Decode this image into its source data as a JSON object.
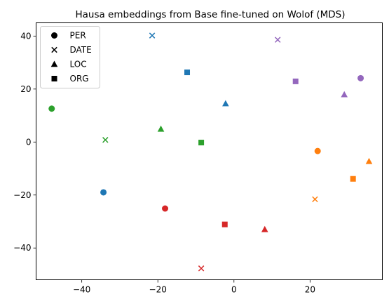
{
  "chart_data": {
    "type": "scatter",
    "title": "Hausa embeddings from Base fine-tuned on Wolof (MDS)",
    "xlabel": "",
    "ylabel": "",
    "xlim": [
      -52,
      39
    ],
    "ylim": [
      -52,
      45
    ],
    "xticks": [
      -40,
      -20,
      0,
      20
    ],
    "yticks": [
      -40,
      -20,
      0,
      20,
      40
    ],
    "grid": false,
    "legend_position": "top-left",
    "legend": [
      {
        "label": "PER",
        "marker": "circle"
      },
      {
        "label": "DATE",
        "marker": "x"
      },
      {
        "label": "LOC",
        "marker": "triangle"
      },
      {
        "label": "ORG",
        "marker": "square"
      }
    ],
    "series": [
      {
        "color": "#1f77b4",
        "points": [
          {
            "x": -34.3,
            "y": -19.0,
            "marker": "circle"
          },
          {
            "x": -21.5,
            "y": 40.2,
            "marker": "x"
          },
          {
            "x": -2.2,
            "y": 14.5,
            "marker": "triangle"
          },
          {
            "x": -12.3,
            "y": 26.3,
            "marker": "square"
          }
        ]
      },
      {
        "color": "#ff7f0e",
        "points": [
          {
            "x": 22.0,
            "y": -3.4,
            "marker": "circle"
          },
          {
            "x": 21.3,
            "y": -21.6,
            "marker": "x"
          },
          {
            "x": 35.5,
            "y": -7.3,
            "marker": "triangle"
          },
          {
            "x": 31.3,
            "y": -13.9,
            "marker": "square"
          }
        ]
      },
      {
        "color": "#2ca02c",
        "points": [
          {
            "x": -47.9,
            "y": 12.6,
            "marker": "circle"
          },
          {
            "x": -33.8,
            "y": 0.8,
            "marker": "x"
          },
          {
            "x": -19.2,
            "y": 4.9,
            "marker": "triangle"
          },
          {
            "x": -8.6,
            "y": -0.2,
            "marker": "square"
          }
        ]
      },
      {
        "color": "#d62728",
        "points": [
          {
            "x": -18.1,
            "y": -25.1,
            "marker": "circle"
          },
          {
            "x": -8.6,
            "y": -47.7,
            "marker": "x"
          },
          {
            "x": 8.1,
            "y": -33.0,
            "marker": "triangle"
          },
          {
            "x": -2.4,
            "y": -31.1,
            "marker": "square"
          }
        ]
      },
      {
        "color": "#9467bd",
        "points": [
          {
            "x": 33.3,
            "y": 24.1,
            "marker": "circle"
          },
          {
            "x": 11.5,
            "y": 38.6,
            "marker": "x"
          },
          {
            "x": 29.0,
            "y": 17.9,
            "marker": "triangle"
          },
          {
            "x": 16.2,
            "y": 22.9,
            "marker": "square"
          }
        ]
      }
    ]
  }
}
